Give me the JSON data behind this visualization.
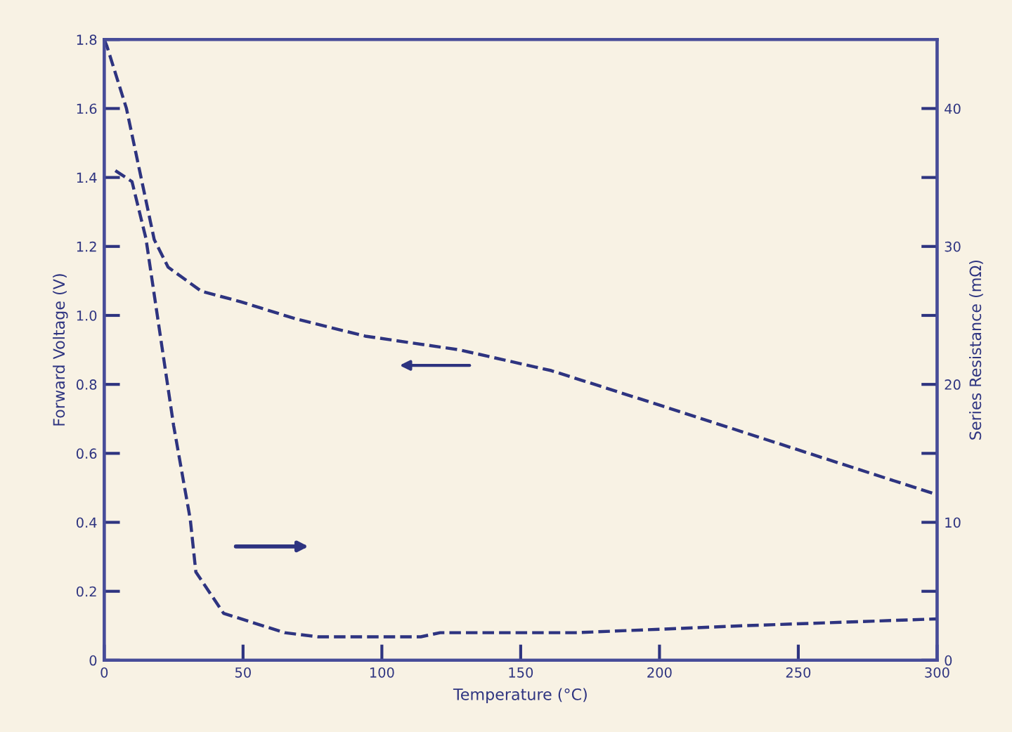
{
  "chart_data": {
    "type": "line",
    "xlabel": "Temperature (°C)",
    "ylabel": "Forward Voltage (V)",
    "y2label": "Series Resistance (mΩ)",
    "xlim": [
      0,
      300
    ],
    "xticks": [
      0,
      50,
      100,
      150,
      200,
      250,
      300
    ],
    "ylim": [
      0,
      1.8
    ],
    "yticks": [
      0,
      0.2,
      0.4,
      0.6,
      0.8,
      {
        "value": 1.0,
        "label": "1.0"
      },
      1.2,
      1.4,
      1.6,
      1.8
    ],
    "y2lim": [
      0,
      45
    ],
    "y2ticks": [
      0,
      {
        "value": 5,
        "label": null
      },
      10,
      {
        "value": 15,
        "label": null
      },
      20,
      {
        "value": 25,
        "label": null
      },
      30,
      {
        "value": 35,
        "label": null
      },
      40
    ],
    "line_style": "dashed",
    "marker": "none",
    "grid": false,
    "legend": false,
    "series": [
      {
        "color": "#2e3480",
        "x": [
          0,
          1,
          8,
          18,
          23,
          35,
          49,
          69,
          94,
          128,
          161,
          200,
          250,
          300
        ],
        "values": [
          1.8,
          1.78,
          1.6,
          1.22,
          1.14,
          1.07,
          1.04,
          0.99,
          0.94,
          0.9,
          0.84,
          0.74,
          0.61,
          0.48
        ]
      },
      {
        "color": "#2e3480",
        "axis": "y2",
        "x": [
          4,
          10,
          15,
          20,
          25,
          28,
          31,
          33,
          43,
          65,
          77,
          114,
          121,
          170,
          230,
          300
        ],
        "values": [
          35.5,
          34.7,
          30.6,
          23.8,
          17,
          13.6,
          10.2,
          6.4,
          3.4,
          2.0,
          1.7,
          1.7,
          2.0,
          2.0,
          2.5,
          3.0
        ]
      }
    ]
  }
}
